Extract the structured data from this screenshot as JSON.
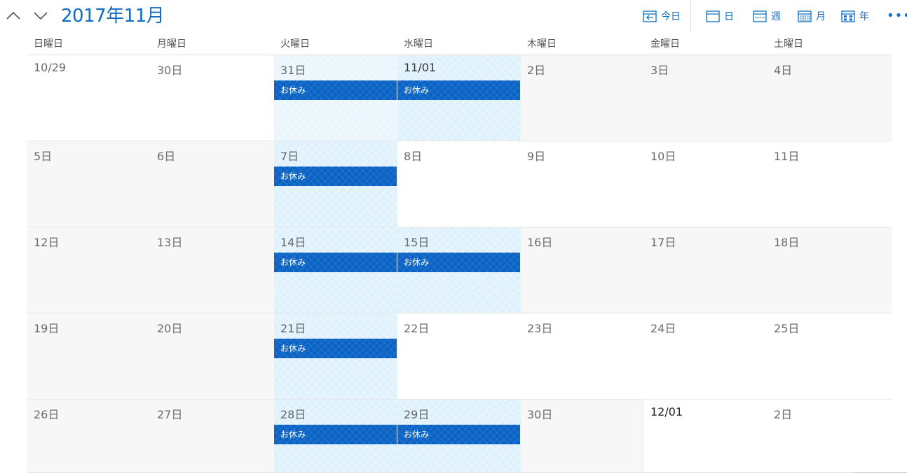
{
  "header": {
    "title": "2017年11月",
    "toolbar": {
      "today": "今日",
      "day": "日",
      "week": "週",
      "month": "月",
      "year": "年",
      "more": "•••"
    }
  },
  "weekdays": [
    "日曜日",
    "月曜日",
    "火曜日",
    "水曜日",
    "木曜日",
    "金曜日",
    "土曜日"
  ],
  "weeks": [
    [
      {
        "date": "10/29"
      },
      {
        "date": "30日"
      },
      {
        "date": "31日",
        "event": "お休み"
      },
      {
        "date": "11/01",
        "event": "お休み"
      },
      {
        "date": "2日"
      },
      {
        "date": "3日"
      },
      {
        "date": "4日"
      }
    ],
    [
      {
        "date": "5日"
      },
      {
        "date": "6日"
      },
      {
        "date": "7日",
        "event": "お休み"
      },
      {
        "date": "8日"
      },
      {
        "date": "9日"
      },
      {
        "date": "10日"
      },
      {
        "date": "11日"
      }
    ],
    [
      {
        "date": "12日"
      },
      {
        "date": "13日"
      },
      {
        "date": "14日",
        "event": "お休み"
      },
      {
        "date": "15日",
        "event": "お休み"
      },
      {
        "date": "16日"
      },
      {
        "date": "17日"
      },
      {
        "date": "18日"
      }
    ],
    [
      {
        "date": "19日"
      },
      {
        "date": "20日"
      },
      {
        "date": "21日",
        "event": "お休み"
      },
      {
        "date": "22日"
      },
      {
        "date": "23日"
      },
      {
        "date": "24日"
      },
      {
        "date": "25日"
      }
    ],
    [
      {
        "date": "26日"
      },
      {
        "date": "27日"
      },
      {
        "date": "28日",
        "event": "お休み"
      },
      {
        "date": "29日",
        "event": "お休み"
      },
      {
        "date": "30日"
      },
      {
        "date": "12/01"
      },
      {
        "date": "2日"
      }
    ]
  ],
  "colors": {
    "accent": "#0e6cc4",
    "event": "#0b63c5",
    "highlight": "#dff1fc"
  }
}
